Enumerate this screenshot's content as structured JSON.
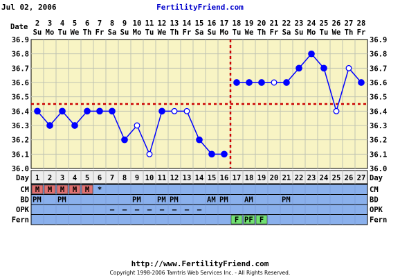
{
  "header": {
    "date_text": "Jul 02, 2006",
    "site_name": "FertilityFriend.com"
  },
  "footer": {
    "url": "http://www.FertilityFriend.com",
    "copyright": "Copyright 1998-2006 Tamtris Web Services Inc. - All Rights Reserved."
  },
  "chart_data": {
    "type": "line",
    "xlabel": "",
    "ylabel": "",
    "ylim": [
      36.0,
      36.9
    ],
    "y_ticks": [
      "36.0",
      "36.1",
      "36.2",
      "36.3",
      "36.4",
      "36.5",
      "36.6",
      "36.7",
      "36.8",
      "36.9"
    ],
    "date_row_label": "Date",
    "dates": [
      "2",
      "3",
      "4",
      "5",
      "6",
      "7",
      "8",
      "9",
      "10",
      "11",
      "12",
      "13",
      "14",
      "15",
      "16",
      "17",
      "18",
      "19",
      "20",
      "21",
      "22",
      "23",
      "24",
      "25",
      "26",
      "27",
      "28"
    ],
    "weekdays": [
      "Su",
      "Mo",
      "Tu",
      "We",
      "Th",
      "Fr",
      "Sa",
      "Su",
      "Mo",
      "Tu",
      "We",
      "Th",
      "Fr",
      "Sa",
      "Su",
      "Mo",
      "Tu",
      "We",
      "Th",
      "Fr",
      "Sa",
      "Su",
      "Mo",
      "Tu",
      "We",
      "Th",
      "Fr"
    ],
    "day_row_label": "Day",
    "days": [
      "1",
      "2",
      "3",
      "4",
      "5",
      "6",
      "7",
      "8",
      "9",
      "10",
      "11",
      "12",
      "13",
      "14",
      "15",
      "16",
      "17",
      "18",
      "19",
      "20",
      "21",
      "22",
      "23",
      "24",
      "25",
      "26",
      "27"
    ],
    "temps": [
      36.4,
      36.3,
      36.4,
      36.3,
      36.4,
      36.4,
      36.4,
      36.2,
      36.3,
      36.1,
      36.4,
      36.4,
      36.4,
      36.2,
      36.1,
      36.1,
      36.6,
      36.6,
      36.6,
      36.6,
      36.6,
      36.7,
      36.8,
      36.7,
      36.4,
      36.7,
      36.6
    ],
    "open_points": [
      9,
      10,
      12,
      13,
      20,
      25,
      26
    ],
    "connected_ranges": [
      [
        1,
        16
      ],
      [
        17,
        27
      ]
    ],
    "coverline": 36.45,
    "ovulation_day": 16,
    "colors": {
      "plot_bg": "#f8f4c4",
      "grid": "#bfc3b2",
      "line": "#0000ff",
      "marker": "#0000ff",
      "coverline": "#cc0000",
      "ovulation": "#cc0000",
      "day_row_bg": "#eeeeee",
      "obs_row_bg": "#8ab0ec",
      "cm_cell": "#e07070",
      "fern_cell": "#70e070"
    },
    "rows": [
      {
        "label": "CM",
        "cells": {
          "1": "M",
          "2": "M",
          "3": "M",
          "4": "M",
          "5": "M",
          "6": "*"
        },
        "highlight": [
          1,
          2,
          3,
          4,
          5
        ],
        "highlight_color": "cm_cell"
      },
      {
        "label": "BD",
        "cells": {
          "1": "PM",
          "3": "PM",
          "9": "PM",
          "11": "PM",
          "12": "PM",
          "15": "AM",
          "16": "PM",
          "18": "AM",
          "21": "PM"
        },
        "highlight": [],
        "highlight_color": ""
      },
      {
        "label": "OPK",
        "cells": {
          "7": "–",
          "8": "–",
          "9": "–",
          "10": "–",
          "11": "–",
          "12": "–",
          "13": "–",
          "14": "–"
        },
        "highlight": [],
        "highlight_color": ""
      },
      {
        "label": "Fern",
        "cells": {
          "17": "F",
          "18": "PF",
          "19": "F"
        },
        "highlight": [
          17,
          18,
          19
        ],
        "highlight_color": "fern_cell"
      }
    ]
  }
}
